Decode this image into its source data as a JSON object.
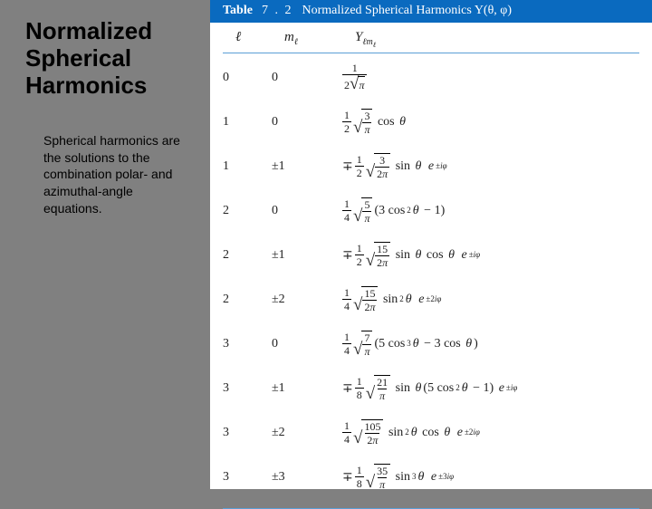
{
  "left": {
    "title_l1": "Normalized",
    "title_l2": "Spherical",
    "title_l3": "Harmonics",
    "body": "Spherical harmonics are the solutions to the combination polar- and azimuthal-angle equations."
  },
  "table": {
    "header_label": "Table",
    "header_num": "7 . 2",
    "header_title": "Normalized Spherical Harmonics Y(θ, φ)",
    "col1": "ℓ",
    "col2": "mℓ",
    "col3": "Yℓmℓ",
    "rows": [
      {
        "l": "0",
        "m": "0"
      },
      {
        "l": "1",
        "m": "0"
      },
      {
        "l": "1",
        "m": "±1"
      },
      {
        "l": "2",
        "m": "0"
      },
      {
        "l": "2",
        "m": "±1"
      },
      {
        "l": "2",
        "m": "±2"
      },
      {
        "l": "3",
        "m": "0"
      },
      {
        "l": "3",
        "m": "±1"
      },
      {
        "l": "3",
        "m": "±2"
      },
      {
        "l": "3",
        "m": "±3"
      }
    ]
  },
  "colors": {
    "page_bg": "#808080",
    "panel_bg": "#ffffff",
    "header_bg": "#0a6abf",
    "header_fg": "#ffffff",
    "rule": "#5a9ed6",
    "text": "#000000"
  }
}
